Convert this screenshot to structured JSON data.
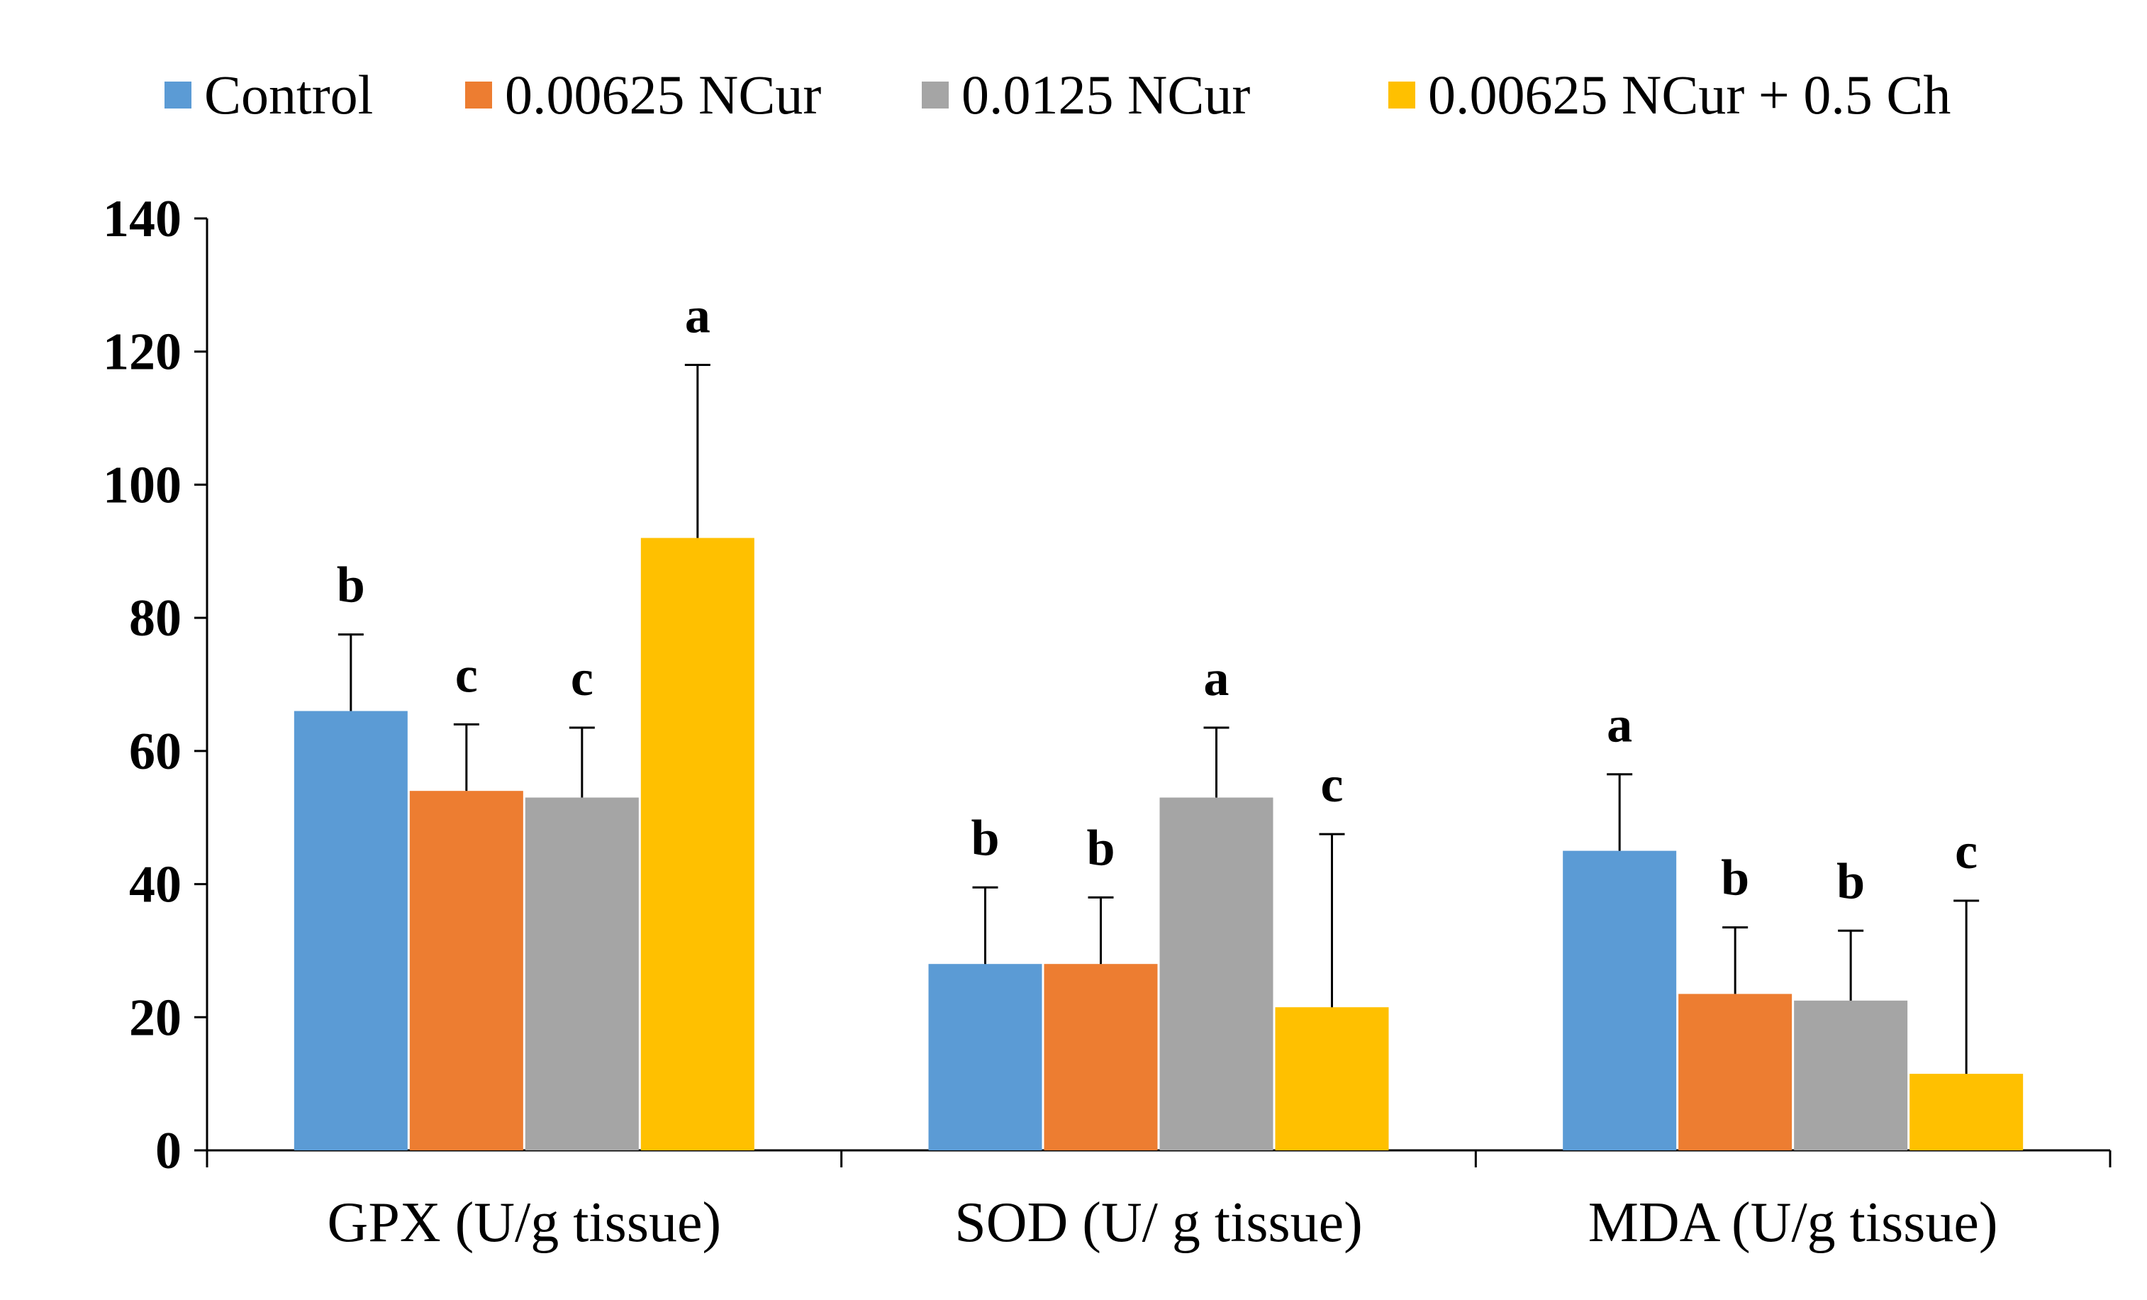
{
  "chart_data": {
    "type": "bar",
    "title": "",
    "xlabel": "",
    "ylabel": "",
    "ylim": [
      0,
      140
    ],
    "yticks": [
      0,
      20,
      40,
      60,
      80,
      100,
      120,
      140
    ],
    "grid": false,
    "legend_position": "top",
    "categories": [
      "GPX (U/g tissue)",
      "SOD (U/ g tissue)",
      "MDA (U/g tissue)"
    ],
    "series": [
      {
        "name": "Control",
        "color": "#5B9BD5",
        "values": [
          66,
          28,
          45
        ],
        "errors": [
          11.5,
          11.5,
          11.5
        ],
        "sig": [
          "b",
          "b",
          "a"
        ]
      },
      {
        "name": "0.00625 NCur",
        "color": "#ED7D31",
        "values": [
          54,
          28,
          23.5
        ],
        "errors": [
          10,
          10,
          10
        ],
        "sig": [
          "c",
          "b",
          "b"
        ]
      },
      {
        "name": "0.0125 NCur",
        "color": "#A5A5A5",
        "values": [
          53,
          53,
          22.5
        ],
        "errors": [
          10.5,
          10.5,
          10.5
        ],
        "sig": [
          "c",
          "a",
          "b"
        ]
      },
      {
        "name": "0.00625 NCur + 0.5 Ch",
        "color": "#FFC000",
        "values": [
          92,
          21.5,
          11.5
        ],
        "errors": [
          26,
          26,
          26
        ],
        "sig": [
          "a",
          "c",
          "c"
        ]
      }
    ]
  }
}
